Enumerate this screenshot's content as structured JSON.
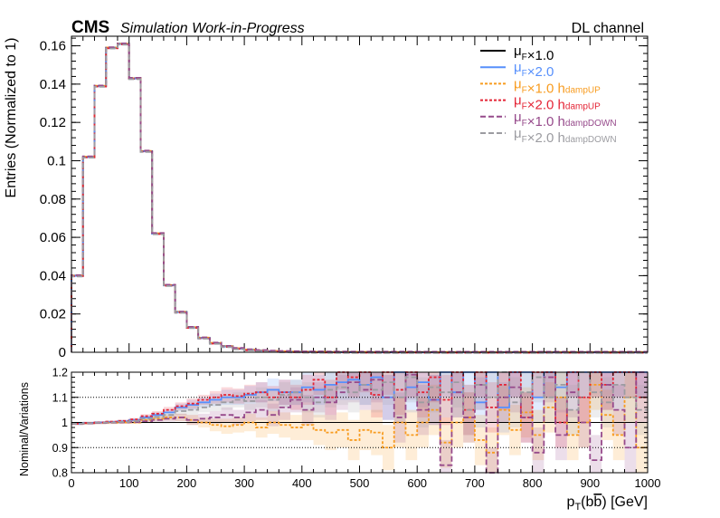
{
  "header": {
    "experiment": "CMS",
    "status": "Simulation Work-in-Progress",
    "channel": "DL channel"
  },
  "chart_data": [
    {
      "type": "line",
      "panel": "main",
      "x_range": [
        0,
        1000
      ],
      "ylim": [
        0,
        0.165
      ],
      "ylabel": "Entries (Normalized to 1)",
      "x_tick_labels": [],
      "y_ticks": [
        0,
        0.02,
        0.04,
        0.06,
        0.08,
        0.1,
        0.12,
        0.14,
        0.16
      ],
      "y_tick_labels": [
        "0",
        "0.02",
        "0.04",
        "0.06",
        "0.08",
        "0.1",
        "0.12",
        "0.14",
        "0.16"
      ],
      "bin_edges": [
        0,
        20,
        40,
        60,
        80,
        100,
        120,
        140,
        160,
        180,
        200,
        220,
        240,
        260,
        280,
        300,
        320,
        340,
        360,
        380,
        400,
        420,
        440,
        460,
        480,
        500,
        520,
        540,
        560,
        580,
        600,
        620,
        640,
        660,
        680,
        700,
        720,
        740,
        760,
        780,
        800,
        820,
        840,
        860,
        880,
        900,
        920,
        940,
        960,
        980,
        1000
      ],
      "values": [
        0.04,
        0.102,
        0.139,
        0.159,
        0.161,
        0.143,
        0.105,
        0.062,
        0.035,
        0.021,
        0.013,
        0.0075,
        0.0048,
        0.0031,
        0.002,
        0.0013,
        0.0009,
        0.0006,
        0.0004,
        0.0003,
        0.0002,
        0.00015,
        0.0001,
        0.0001,
        8e-05,
        6e-05,
        5e-05,
        4e-05,
        3e-05,
        3e-05,
        2e-05,
        2e-05,
        2e-05,
        1e-05,
        1e-05,
        1e-05,
        1e-05,
        1e-05,
        1e-05,
        1e-05,
        0,
        0,
        0,
        0,
        0,
        0,
        0,
        0,
        0,
        0
      ],
      "legend_position": "top-right",
      "series": [
        {
          "name": "1.0",
          "label_main": "μ",
          "label_sub": "F",
          "label_mid": "×1.0",
          "label_tail": "",
          "label_tail_sub": "",
          "color": "#000000",
          "dash": "",
          "width": 1.8,
          "shift": 0
        },
        {
          "name": "2.0",
          "label_main": "μ",
          "label_sub": "F",
          "label_mid": "×2.0",
          "label_tail": "",
          "label_tail_sub": "",
          "color": "#5790fc",
          "dash": "",
          "width": 1.8,
          "shift": 0.3
        },
        {
          "name": "1.0 hdampUP",
          "label_main": "μ",
          "label_sub": "F",
          "label_mid": "×1.0 h",
          "label_tail": "",
          "label_tail_sub": "dampUP",
          "color": "#f89c20",
          "dash": "3,2",
          "width": 1.8,
          "shift": -0.3
        },
        {
          "name": "2.0 hdampUP",
          "label_main": "μ",
          "label_sub": "F",
          "label_mid": "×2.0 h",
          "label_tail": "",
          "label_tail_sub": "dampUP",
          "color": "#e42536",
          "dash": "3,2",
          "width": 1.8,
          "shift": 0.6
        },
        {
          "name": "1.0 hdampDOWN",
          "label_main": "μ",
          "label_sub": "F",
          "label_mid": "×1.0 h",
          "label_tail": "",
          "label_tail_sub": "dampDOWN",
          "color": "#964a8b",
          "dash": "6,3",
          "width": 1.8,
          "shift": -0.6
        },
        {
          "name": "2.0 hdampDOWN",
          "label_main": "μ",
          "label_sub": "F",
          "label_mid": "×2.0 h",
          "label_tail": "",
          "label_tail_sub": "dampDOWN",
          "color": "#9c9ca1",
          "dash": "6,3",
          "width": 1.8,
          "shift": 0.9
        }
      ]
    },
    {
      "type": "line",
      "panel": "ratio",
      "x_range": [
        0,
        1000
      ],
      "ylim": [
        0.8,
        1.2
      ],
      "ylabel": "Nominal/Variations",
      "xlabel": "p_T(bb̄) [GeV]",
      "xlabel_parts": {
        "p": "p",
        "sub": "T",
        "mid": "(b",
        "bbar": "b",
        "tail": ") [GeV]"
      },
      "x_ticks": [
        0,
        100,
        200,
        300,
        400,
        500,
        600,
        700,
        800,
        900,
        1000
      ],
      "x_tick_labels": [
        "0",
        "100",
        "200",
        "300",
        "400",
        "500",
        "600",
        "700",
        "800",
        "900",
        "1000"
      ],
      "y_ticks": [
        0.8,
        0.9,
        1,
        1.1,
        1.2
      ],
      "y_tick_labels": [
        "0.8",
        "0.9",
        "1",
        "1.1",
        "1.2"
      ],
      "gridlines_dotted": [
        0.9,
        1.1
      ],
      "reference_line": 1.0,
      "series": [
        {
          "name": "2.0",
          "color": "#5790fc",
          "dash": "",
          "values": [
            0.995,
            0.998,
            1.0,
            1.002,
            1.005,
            1.01,
            1.02,
            1.03,
            1.04,
            1.06,
            1.07,
            1.08,
            1.09,
            1.1,
            1.1,
            1.11,
            1.12,
            1.13,
            1.12,
            1.12,
            1.14,
            1.13,
            1.15,
            1.16,
            1.17,
            1.15,
            1.18,
            1.1,
            1.2,
            1.14,
            1.16,
            1.09,
            1.2,
            1.12,
            1.2,
            1.08,
            1.2,
            1.06,
            1.2,
            1.2,
            1.1,
            1.2,
            1.14,
            1.2,
            1.2,
            1.2,
            1.2,
            1.2,
            1.2,
            1.2
          ],
          "band": [
            0.005,
            0.005,
            0.005,
            0.005,
            0.005,
            0.006,
            0.008,
            0.01,
            0.012,
            0.015,
            0.02,
            0.02,
            0.025,
            0.03,
            0.03,
            0.035,
            0.04,
            0.045,
            0.05,
            0.05,
            0.06,
            0.06,
            0.07,
            0.07,
            0.08,
            0.08,
            0.09,
            0.09,
            0.1,
            0.1,
            0.1,
            0.1,
            0.1,
            0.1,
            0.1,
            0.1,
            0.1,
            0.1,
            0.1,
            0.1,
            0.1,
            0.1,
            0.1,
            0.1,
            0.1,
            0.1,
            0.1,
            0.1,
            0.1,
            0.1
          ]
        },
        {
          "name": "1.0 hdampUP",
          "color": "#f89c20",
          "dash": "3,2",
          "values": [
            0.995,
            0.997,
            0.998,
            0.999,
            1.0,
            1.0,
            1.01,
            1.015,
            1.02,
            1.02,
            1.01,
            1.0,
            0.99,
            0.985,
            0.99,
            1.0,
            0.98,
            1.0,
            0.99,
            0.98,
            0.99,
            0.97,
            0.96,
            0.97,
            0.93,
            0.97,
            0.96,
            0.9,
            1.0,
            0.95,
            1.0,
            1.05,
            0.92,
            1.0,
            1.02,
            0.93,
            0.88,
            1.05,
            0.97,
            1.04,
            0.95,
            1.06,
            1.1,
            0.95,
            1.0,
            1.15,
            1.03,
            0.95,
            1.1,
            0.9
          ],
          "band": [
            0.005,
            0.005,
            0.005,
            0.005,
            0.005,
            0.006,
            0.008,
            0.01,
            0.012,
            0.015,
            0.02,
            0.02,
            0.025,
            0.03,
            0.03,
            0.035,
            0.04,
            0.045,
            0.05,
            0.05,
            0.06,
            0.06,
            0.07,
            0.07,
            0.08,
            0.08,
            0.09,
            0.09,
            0.1,
            0.1,
            0.1,
            0.1,
            0.1,
            0.1,
            0.1,
            0.1,
            0.1,
            0.1,
            0.1,
            0.1,
            0.1,
            0.1,
            0.1,
            0.1,
            0.1,
            0.1,
            0.1,
            0.1,
            0.1,
            0.1
          ]
        },
        {
          "name": "2.0 hdampUP",
          "color": "#e42536",
          "dash": "3,2",
          "values": [
            0.995,
            0.998,
            1.0,
            1.003,
            1.006,
            1.012,
            1.025,
            1.035,
            1.05,
            1.065,
            1.075,
            1.09,
            1.1,
            1.11,
            1.105,
            1.115,
            1.12,
            1.1,
            1.12,
            1.1,
            1.13,
            1.17,
            1.1,
            1.2,
            1.18,
            1.2,
            1.11,
            1.2,
            1.13,
            1.2,
            1.12,
            1.18,
            1.09,
            1.2,
            1.05,
            1.2,
            1.06,
            1.15,
            1.2,
            1.02,
            1.2,
            1.2,
            1.0,
            1.2,
            1.1,
            1.2,
            1.15,
            1.2,
            1.2,
            1.1
          ],
          "band": [
            0.005,
            0.005,
            0.005,
            0.005,
            0.005,
            0.006,
            0.008,
            0.01,
            0.012,
            0.015,
            0.02,
            0.02,
            0.025,
            0.03,
            0.03,
            0.035,
            0.04,
            0.045,
            0.05,
            0.05,
            0.06,
            0.06,
            0.07,
            0.07,
            0.08,
            0.08,
            0.09,
            0.09,
            0.1,
            0.1,
            0.1,
            0.1,
            0.1,
            0.1,
            0.1,
            0.1,
            0.1,
            0.1,
            0.1,
            0.1,
            0.1,
            0.1,
            0.1,
            0.1,
            0.1,
            0.1,
            0.1,
            0.1,
            0.1,
            0.1
          ]
        },
        {
          "name": "1.0 hdampDOWN",
          "color": "#964a8b",
          "dash": "6,3",
          "values": [
            0.995,
            0.996,
            0.998,
            0.999,
            1.0,
            1.002,
            1.005,
            1.01,
            1.015,
            1.02,
            1.01,
            1.015,
            1.02,
            1.03,
            1.02,
            1.04,
            1.05,
            1.03,
            1.06,
            1.09,
            1.05,
            1.1,
            1.08,
            1.12,
            1.16,
            1.13,
            1.17,
            1.1,
            1.02,
            1.19,
            1.05,
            1.09,
            0.83,
            1.12,
            1.02,
            1.15,
            0.8,
            1.1,
            1.14,
            1.02,
            0.88,
            1.18,
            0.95,
            1.12,
            1.0,
            0.85,
            1.15,
            1.05,
            0.9,
            1.2
          ],
          "band": [
            0.005,
            0.005,
            0.005,
            0.005,
            0.005,
            0.006,
            0.008,
            0.01,
            0.012,
            0.015,
            0.02,
            0.02,
            0.025,
            0.03,
            0.03,
            0.035,
            0.04,
            0.045,
            0.05,
            0.05,
            0.06,
            0.06,
            0.07,
            0.07,
            0.08,
            0.08,
            0.09,
            0.09,
            0.1,
            0.1,
            0.1,
            0.1,
            0.1,
            0.1,
            0.1,
            0.1,
            0.1,
            0.1,
            0.1,
            0.1,
            0.1,
            0.1,
            0.1,
            0.1,
            0.1,
            0.1,
            0.1,
            0.1,
            0.1,
            0.1
          ]
        },
        {
          "name": "2.0 hdampDOWN",
          "color": "#9c9ca1",
          "dash": "6,3",
          "values": [
            0.995,
            0.997,
            0.999,
            1.0,
            1.002,
            1.006,
            1.015,
            1.022,
            1.03,
            1.045,
            1.05,
            1.06,
            1.07,
            1.08,
            1.09,
            1.085,
            1.1,
            1.09,
            1.11,
            1.12,
            1.1,
            1.08,
            1.13,
            1.14,
            1.12,
            1.15,
            1.13,
            1.16,
            1.1,
            1.18,
            1.08,
            1.14,
            1.12,
            1.16,
            1.05,
            1.15,
            1.1,
            1.2,
            1.08,
            1.12,
            1.18,
            1.1,
            1.15,
            1.05,
            1.2,
            1.12,
            1.08,
            1.15,
            1.1,
            1.05
          ],
          "band": [
            0.005,
            0.005,
            0.005,
            0.005,
            0.005,
            0.006,
            0.008,
            0.01,
            0.012,
            0.015,
            0.02,
            0.02,
            0.025,
            0.03,
            0.03,
            0.035,
            0.04,
            0.045,
            0.05,
            0.05,
            0.06,
            0.06,
            0.07,
            0.07,
            0.08,
            0.08,
            0.09,
            0.09,
            0.1,
            0.1,
            0.1,
            0.1,
            0.1,
            0.1,
            0.1,
            0.1,
            0.1,
            0.1,
            0.1,
            0.1,
            0.1,
            0.1,
            0.1,
            0.1,
            0.1,
            0.1,
            0.1,
            0.1,
            0.1,
            0.1
          ]
        }
      ]
    }
  ]
}
